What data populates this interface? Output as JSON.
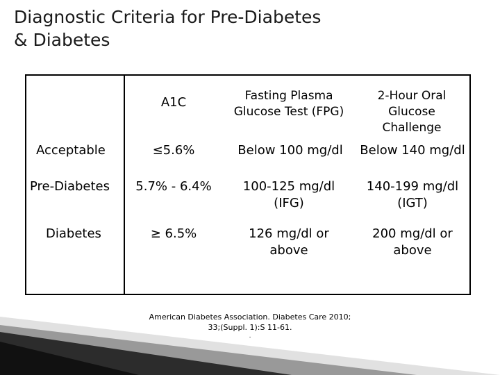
{
  "title": {
    "line1": "Diagnostic Criteria for Pre-Diabetes",
    "line2": "& Diabetes"
  },
  "table": {
    "headers": {
      "a1c": "A1C",
      "fpg": [
        "Fasting Plasma",
        "Glucose Test (FPG)"
      ],
      "ogtt": [
        "2-Hour Oral",
        "Glucose",
        "Challenge"
      ]
    },
    "rows": [
      {
        "label": "Acceptable",
        "a1c": "≤5.6%",
        "fpg": [
          "Below 100 mg/dl"
        ],
        "ogtt": [
          "Below 140 mg/dl"
        ]
      },
      {
        "label": "Pre-Diabetes",
        "a1c": "5.7% - 6.4%",
        "fpg": [
          "100-125 mg/dl",
          "(IFG)"
        ],
        "ogtt": [
          "140-199 mg/dl",
          "(IGT)"
        ]
      },
      {
        "label": "Diabetes",
        "a1c": "≥ 6.5%",
        "fpg": [
          "126 mg/dl or",
          "above"
        ],
        "ogtt": [
          "200 mg/dl or",
          "above"
        ]
      }
    ]
  },
  "citation": {
    "line1": "American Diabetes Association. Diabetes Care 2010;",
    "line2": "33;(Suppl. 1):S 11-61.",
    "line3": "."
  },
  "colors": {
    "title_text": "#1a1a1a",
    "border": "#000000",
    "decor_dark": "#2c2c2c",
    "decor_mid": "#7a7a7a",
    "decor_light": "#c8c8c8"
  }
}
